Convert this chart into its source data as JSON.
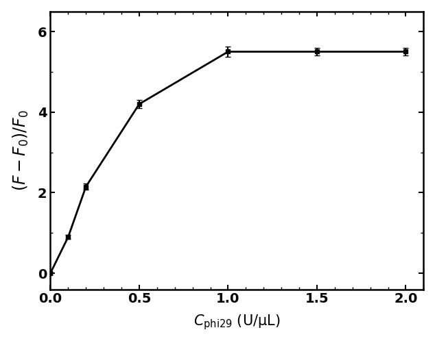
{
  "x": [
    0.0,
    0.1,
    0.2,
    0.5,
    1.0,
    1.5,
    2.0
  ],
  "y": [
    0.0,
    0.9,
    2.15,
    4.2,
    5.5,
    5.5,
    5.5
  ],
  "yerr": [
    0.03,
    0.05,
    0.07,
    0.1,
    0.12,
    0.1,
    0.1
  ],
  "xlim": [
    0.0,
    2.1
  ],
  "ylim": [
    -0.4,
    6.5
  ],
  "xticks": [
    0.0,
    0.5,
    1.0,
    1.5,
    2.0
  ],
  "yticks": [
    0,
    2,
    4,
    6
  ],
  "line_color": "#000000",
  "marker": "s",
  "markersize": 5,
  "linewidth": 2.0,
  "capsize": 3,
  "elinewidth": 1.5,
  "background_color": "#ffffff",
  "tick_fontsize": 14,
  "label_fontsize": 15
}
